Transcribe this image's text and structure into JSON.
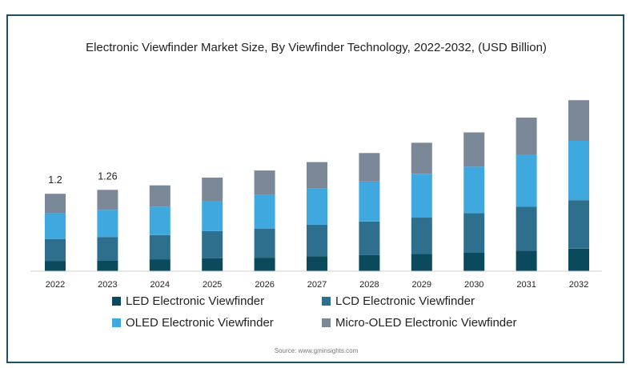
{
  "chart_data": {
    "type": "bar",
    "stacked": true,
    "title": "Electronic Viewfinder Market Size, By Viewfinder Technology, 2022-2032, (USD Billion)",
    "categories": [
      "2022",
      "2023",
      "2024",
      "2025",
      "2026",
      "2027",
      "2028",
      "2029",
      "2030",
      "2031",
      "2032"
    ],
    "series": [
      {
        "name": "LED Electronic Viewfinder",
        "color": "#0b4a5c",
        "values": [
          0.16,
          0.17,
          0.18,
          0.2,
          0.21,
          0.23,
          0.25,
          0.27,
          0.29,
          0.32,
          0.35
        ]
      },
      {
        "name": "LCD Electronic Viewfinder",
        "color": "#2e6f8e",
        "values": [
          0.34,
          0.36,
          0.38,
          0.42,
          0.45,
          0.49,
          0.52,
          0.56,
          0.61,
          0.68,
          0.75
        ]
      },
      {
        "name": "OLED Electronic Viewfinder",
        "color": "#3ea8df",
        "values": [
          0.4,
          0.42,
          0.44,
          0.47,
          0.52,
          0.56,
          0.62,
          0.68,
          0.72,
          0.81,
          0.92
        ]
      },
      {
        "name": "Micro-OLED Electronic Viewfinder",
        "color": "#7b8898",
        "values": [
          0.3,
          0.31,
          0.33,
          0.36,
          0.38,
          0.41,
          0.44,
          0.48,
          0.53,
          0.57,
          0.63
        ]
      }
    ],
    "data_labels": [
      {
        "category": "2022",
        "text": "1.2"
      },
      {
        "category": "2023",
        "text": "1.26"
      }
    ],
    "ylim": [
      0,
      2.9
    ],
    "grid": false,
    "legend_placement": "bottom",
    "source": "Source: www.gminsights.com"
  }
}
